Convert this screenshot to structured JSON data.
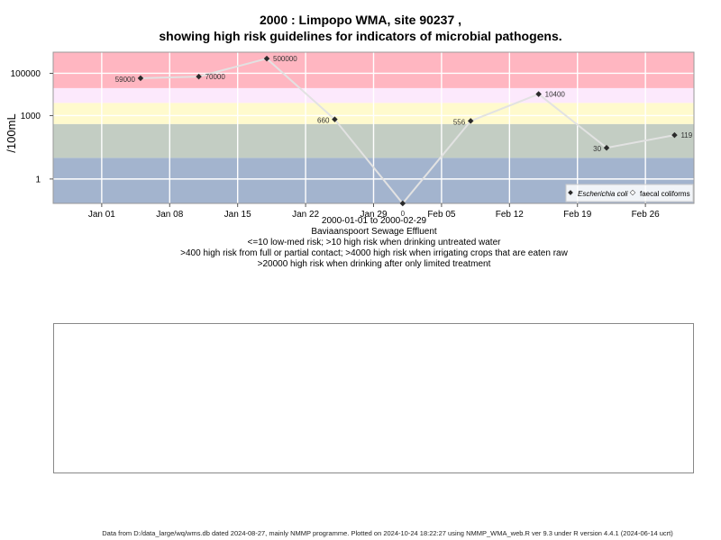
{
  "chart_data": {
    "type": "scatter",
    "title": "2000 : Limpopo WMA, site 90237 ,",
    "subtitle": "showing high risk guidelines for indicators of microbial pathogens.",
    "ylabel": "/100mL",
    "yscale": "log",
    "xlabel_lines": [
      "2000-01-01 to 2000-02-29",
      "Baviaanspoort Sewage Effluent",
      "<=10 low-med risk; >10 high risk when drinking untreated water",
      ">400 high risk from full or partial contact; >4000 high risk when irrigating crops that are eaten raw",
      ">20000 high risk when drinking after only limited treatment"
    ],
    "xlim": [
      "1999-12-27",
      "2000-03-02"
    ],
    "ylim": [
      0.07,
      1000000
    ],
    "x_ticks": [
      {
        "date": "2000-01-01",
        "label": "Jan 01"
      },
      {
        "date": "2000-01-08",
        "label": "Jan 08"
      },
      {
        "date": "2000-01-15",
        "label": "Jan 15"
      },
      {
        "date": "2000-01-22",
        "label": "Jan 22"
      },
      {
        "date": "2000-01-29",
        "label": "Jan 29"
      },
      {
        "date": "2000-02-05",
        "label": "Feb 05"
      },
      {
        "date": "2000-02-12",
        "label": "Feb 12"
      },
      {
        "date": "2000-02-19",
        "label": "Feb 19"
      },
      {
        "date": "2000-02-26",
        "label": "Feb 26"
      }
    ],
    "y_ticks": [
      {
        "value": 1,
        "label": "1"
      },
      {
        "value": 1000,
        "label": "1000"
      },
      {
        "value": 100000,
        "label": "100000"
      }
    ],
    "risk_bands": [
      {
        "from": 0.07,
        "to": 10,
        "color": "#a3b4ce"
      },
      {
        "from": 10,
        "to": 400,
        "color": "#c3cdc3"
      },
      {
        "from": 400,
        "to": 4000,
        "color": "#fffacd"
      },
      {
        "from": 4000,
        "to": 20000,
        "color": "#fce9fc"
      },
      {
        "from": 20000,
        "to": 1000000,
        "color": "#ffb6c1"
      }
    ],
    "series": [
      {
        "name": "Escherichia coli",
        "color": "#2b2b2b",
        "x": [
          "2000-01-05",
          "2000-01-11",
          "2000-01-18",
          "2000-01-25",
          "2000-02-01",
          "2000-02-08",
          "2000-02-15",
          "2000-02-22",
          "2000-02-29"
        ],
        "y": [
          59000,
          70000,
          500000,
          660,
          0,
          556,
          10400,
          30,
          119
        ],
        "labels": [
          "59000",
          "70000",
          "500000",
          "660",
          "0",
          "556",
          "10400",
          "30",
          "119"
        ]
      }
    ],
    "legend": {
      "position": "bottom-right",
      "entries": [
        {
          "name": "Escherichia coli",
          "italic": true
        },
        {
          "name": "faecal coliforms",
          "italic": false
        }
      ]
    },
    "grid": true
  },
  "footer": "Data from D:/data_large/wq/wms.db dated 2024-08-27, mainly NMMP programme. Plotted on 2024-10-24 18:22:27 using NMMP_WMA_web.R ver 9.3 under R version 4.4.1 (2024-06-14 ucrt)"
}
